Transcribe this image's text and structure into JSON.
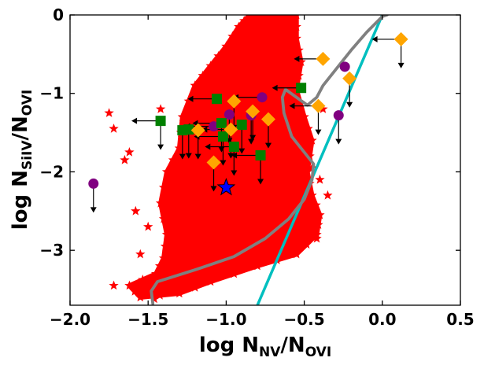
{
  "chart_data": {
    "type": "scatter",
    "title": "",
    "xlabel": {
      "base": "log N",
      "num_sub": "NV",
      "slash": "/N",
      "den_sub": "OVI"
    },
    "ylabel": {
      "base": "log N",
      "num_sub": "SiIV",
      "slash": "/N",
      "den_sub": "OVI"
    },
    "xlim": [
      -2.0,
      0.5
    ],
    "ylim": [
      -3.7,
      0.0
    ],
    "xticks": [
      -2.0,
      -1.5,
      -1.0,
      -0.5,
      0.0,
      0.5
    ],
    "xtick_labels": [
      "−2.0",
      "−1.5",
      "−1.0",
      "−0.5",
      "0.0",
      "0.5"
    ],
    "yticks": [
      0,
      -1,
      -2,
      -3
    ],
    "ytick_labels": [
      "0",
      "−1",
      "−2",
      "−3"
    ],
    "colors": {
      "model_cloud": "#ff0000",
      "gray_curve": "#808080",
      "cyan_line": "#00bfbf",
      "purple_circle": "#800080",
      "green_square": "#008000",
      "orange_diamond": "#ffa500",
      "blue_star": "#0000ff",
      "limit_arrow": "#000000"
    },
    "model_cloud_outline": [
      [
        -1.45,
        -3.3
      ],
      [
        -1.4,
        -3.1
      ],
      [
        -1.38,
        -2.8
      ],
      [
        -1.42,
        -2.4
      ],
      [
        -1.38,
        -2.0
      ],
      [
        -1.3,
        -1.7
      ],
      [
        -1.28,
        -1.3
      ],
      [
        -1.2,
        -0.9
      ],
      [
        -1.1,
        -0.65
      ],
      [
        -1.0,
        -0.4
      ],
      [
        -0.92,
        -0.15
      ],
      [
        -0.85,
        0.0
      ],
      [
        -0.55,
        0.0
      ],
      [
        -0.55,
        -0.3
      ],
      [
        -0.52,
        -0.6
      ],
      [
        -0.55,
        -0.95
      ],
      [
        -0.5,
        -1.3
      ],
      [
        -0.45,
        -1.6
      ],
      [
        -0.48,
        -2.0
      ],
      [
        -0.45,
        -2.3
      ],
      [
        -0.4,
        -2.55
      ],
      [
        -0.42,
        -2.8
      ],
      [
        -0.55,
        -3.05
      ],
      [
        -0.8,
        -3.2
      ],
      [
        -1.1,
        -3.4
      ],
      [
        -1.3,
        -3.55
      ],
      [
        -1.55,
        -3.6
      ],
      [
        -1.62,
        -3.45
      ]
    ],
    "model_cloud_scatter": [
      [
        -1.75,
        -1.25
      ],
      [
        -1.72,
        -1.45
      ],
      [
        -1.62,
        -1.75
      ],
      [
        -1.65,
        -1.85
      ],
      [
        -1.58,
        -2.5
      ],
      [
        -1.5,
        -2.7
      ],
      [
        -1.55,
        -3.05
      ],
      [
        -1.72,
        -3.45
      ],
      [
        -1.58,
        -3.5
      ],
      [
        -1.42,
        -1.2
      ],
      [
        -1.35,
        -2.0
      ],
      [
        -0.38,
        -1.2
      ],
      [
        -0.35,
        -2.3
      ],
      [
        -0.42,
        -2.85
      ],
      [
        -0.4,
        -2.1
      ],
      [
        -0.45,
        -1.95
      ],
      [
        -1.46,
        -3.62
      ],
      [
        -1.3,
        -2.45
      ],
      [
        -0.48,
        -2.65
      ]
    ],
    "gray_curve": [
      [
        -1.47,
        -3.68
      ],
      [
        -1.48,
        -3.52
      ],
      [
        -1.44,
        -3.4
      ],
      [
        -1.2,
        -3.25
      ],
      [
        -0.95,
        -3.08
      ],
      [
        -0.75,
        -2.85
      ],
      [
        -0.6,
        -2.6
      ],
      [
        -0.5,
        -2.35
      ],
      [
        -0.45,
        -2.1
      ],
      [
        -0.44,
        -1.9
      ],
      [
        -0.5,
        -1.75
      ],
      [
        -0.58,
        -1.55
      ],
      [
        -0.63,
        -1.25
      ],
      [
        -0.64,
        -1.05
      ],
      [
        -0.62,
        -0.95
      ],
      [
        -0.55,
        -1.05
      ],
      [
        -0.48,
        -1.15
      ],
      [
        -0.42,
        -1.05
      ],
      [
        -0.38,
        -0.9
      ],
      [
        -0.3,
        -0.7
      ],
      [
        -0.2,
        -0.45
      ],
      [
        -0.1,
        -0.22
      ],
      [
        0.0,
        -0.02
      ],
      [
        0.03,
        0.0
      ]
    ],
    "cyan_line": [
      [
        -0.8,
        -3.7
      ],
      [
        0.0,
        0.0
      ]
    ],
    "purple_circles": [
      {
        "x": -1.85,
        "y": -2.15,
        "limit": "down"
      },
      {
        "x": -0.24,
        "y": -0.66,
        "limit": "none"
      },
      {
        "x": -0.28,
        "y": -1.28,
        "limit": "down"
      },
      {
        "x": -1.08,
        "y": -1.42,
        "limit": "left"
      },
      {
        "x": -0.98,
        "y": -1.27,
        "limit": "down"
      },
      {
        "x": -0.84,
        "y": -1.28,
        "limit": "down"
      },
      {
        "x": -0.77,
        "y": -1.05,
        "limit": "left"
      }
    ],
    "green_squares": [
      {
        "x": -1.42,
        "y": -1.35,
        "limit": "left+down"
      },
      {
        "x": -1.28,
        "y": -1.47,
        "limit": "down"
      },
      {
        "x": -1.24,
        "y": -1.46,
        "limit": "down"
      },
      {
        "x": -1.06,
        "y": -1.07,
        "limit": "left"
      },
      {
        "x": -1.03,
        "y": -1.38,
        "limit": "left+down"
      },
      {
        "x": -1.02,
        "y": -1.55,
        "limit": "left+down"
      },
      {
        "x": -0.95,
        "y": -1.68,
        "limit": "left+down"
      },
      {
        "x": -0.78,
        "y": -1.79,
        "limit": "left+down"
      },
      {
        "x": -0.9,
        "y": -1.4,
        "limit": "down"
      },
      {
        "x": -0.52,
        "y": -0.93,
        "limit": "left"
      }
    ],
    "orange_diamonds": [
      {
        "x": 0.12,
        "y": -0.31,
        "limit": "left+down"
      },
      {
        "x": -0.38,
        "y": -0.56,
        "limit": "left"
      },
      {
        "x": -0.21,
        "y": -0.81,
        "limit": "down"
      },
      {
        "x": -0.41,
        "y": -1.16,
        "limit": "left+down"
      },
      {
        "x": -0.95,
        "y": -1.1,
        "limit": "down"
      },
      {
        "x": -0.83,
        "y": -1.23,
        "limit": "down"
      },
      {
        "x": -0.73,
        "y": -1.33,
        "limit": "down"
      },
      {
        "x": -1.18,
        "y": -1.47,
        "limit": "down"
      },
      {
        "x": -0.97,
        "y": -1.46,
        "limit": "left+down"
      },
      {
        "x": -1.08,
        "y": -1.88,
        "limit": "down"
      }
    ],
    "blue_star": {
      "x": -1.0,
      "y": -2.2
    }
  }
}
